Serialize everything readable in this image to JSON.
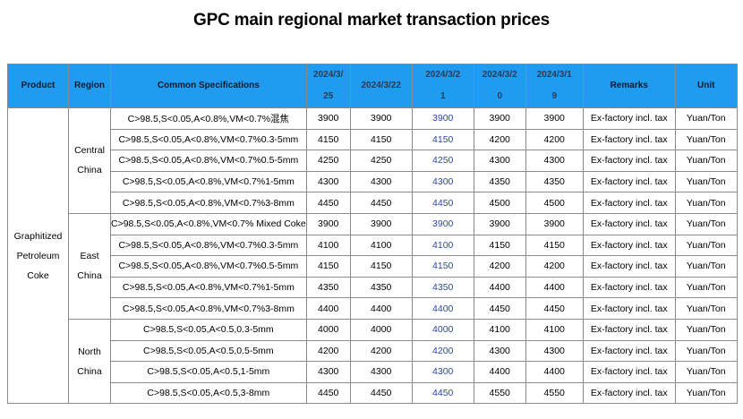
{
  "title": "GPC main regional market transaction prices",
  "headers": {
    "product": "Product",
    "region": "Region",
    "spec": "Common Specifications",
    "dates": [
      [
        "2024/3/",
        "25"
      ],
      [
        "2024/3/22"
      ],
      [
        "2024/3/2",
        "1"
      ],
      [
        "2024/3/2",
        "0"
      ],
      [
        "2024/3/1",
        "9"
      ]
    ],
    "remarks": "Remarks",
    "unit": "Unit"
  },
  "product": [
    "Graphitized",
    "Petroleum",
    "Coke"
  ],
  "regions": [
    {
      "name": [
        "Central",
        "China"
      ],
      "rows": [
        {
          "spec": "C>98.5,S<0.05,A<0.8%,VM<0.7%混焦",
          "p": [
            "3900",
            "3900",
            "3900",
            "3900",
            "3900"
          ],
          "remarks": "Ex-factory incl. tax",
          "unit": "Yuan/Ton"
        },
        {
          "spec": "C>98.5,S<0.05,A<0.8%,VM<0.7%0.3-5mm",
          "p": [
            "4150",
            "4150",
            "4150",
            "4200",
            "4200"
          ],
          "remarks": "Ex-factory incl. tax",
          "unit": "Yuan/Ton"
        },
        {
          "spec": "C>98.5,S<0.05,A<0.8%,VM<0.7%0.5-5mm",
          "p": [
            "4250",
            "4250",
            "4250",
            "4300",
            "4300"
          ],
          "remarks": "Ex-factory incl. tax",
          "unit": "Yuan/Ton"
        },
        {
          "spec": "C>98.5,S<0.05,A<0.8%,VM<0.7%1-5mm",
          "p": [
            "4300",
            "4300",
            "4300",
            "4350",
            "4350"
          ],
          "remarks": "Ex-factory incl. tax",
          "unit": "Yuan/Ton"
        },
        {
          "spec": "C>98.5,S<0.05,A<0.8%,VM<0.7%3-8mm",
          "p": [
            "4450",
            "4450",
            "4450",
            "4500",
            "4500"
          ],
          "remarks": "Ex-factory incl. tax",
          "unit": "Yuan/Ton"
        }
      ]
    },
    {
      "name": [
        "East",
        "China"
      ],
      "rows": [
        {
          "spec": "C>98.5,S<0.05,A<0.8%,VM<0.7% Mixed Coke",
          "p": [
            "3900",
            "3900",
            "3900",
            "3900",
            "3900"
          ],
          "remarks": "Ex-factory incl. tax",
          "unit": "Yuan/Ton"
        },
        {
          "spec": "C>98.5,S<0.05,A<0.8%,VM<0.7%0.3-5mm",
          "p": [
            "4100",
            "4100",
            "4100",
            "4150",
            "4150"
          ],
          "remarks": "Ex-factory incl. tax",
          "unit": "Yuan/Ton"
        },
        {
          "spec": "C>98.5,S<0.05,A<0.8%,VM<0.7%0.5-5mm",
          "p": [
            "4150",
            "4150",
            "4150",
            "4200",
            "4200"
          ],
          "remarks": "Ex-factory incl. tax",
          "unit": "Yuan/Ton"
        },
        {
          "spec": "C>98.5,S<0.05,A<0.8%,VM<0.7%1-5mm",
          "p": [
            "4350",
            "4350",
            "4350",
            "4400",
            "4400"
          ],
          "remarks": "Ex-factory incl. tax",
          "unit": "Yuan/Ton"
        },
        {
          "spec": "C>98.5,S<0.05,A<0.8%,VM<0.7%3-8mm",
          "p": [
            "4400",
            "4400",
            "4400",
            "4450",
            "4450"
          ],
          "remarks": "Ex-factory incl. tax",
          "unit": "Yuan/Ton"
        }
      ]
    },
    {
      "name": [
        "North",
        "China"
      ],
      "rows": [
        {
          "spec": "C>98.5,S<0.05,A<0.5,0.3-5mm",
          "p": [
            "4000",
            "4000",
            "4000",
            "4100",
            "4100"
          ],
          "remarks": "Ex-factory incl. tax",
          "unit": "Yuan/Ton"
        },
        {
          "spec": "C>98.5,S<0.05,A<0.5,0.5-5mm",
          "p": [
            "4200",
            "4200",
            "4200",
            "4300",
            "4300"
          ],
          "remarks": "Ex-factory incl. tax",
          "unit": "Yuan/Ton"
        },
        {
          "spec": "C>98.5,S<0.05,A<0.5,1-5mm",
          "p": [
            "4300",
            "4300",
            "4300",
            "4400",
            "4400"
          ],
          "remarks": "Ex-factory incl. tax",
          "unit": "Yuan/Ton"
        },
        {
          "spec": "C>98.5,S<0.05,A<0.5,3-8mm",
          "p": [
            "4450",
            "4450",
            "4450",
            "4550",
            "4550"
          ],
          "remarks": "Ex-factory incl. tax",
          "unit": "Yuan/Ton"
        }
      ]
    }
  ],
  "colors": {
    "header_bg": "#1f9cf0",
    "highlight_text": "#2b45a8",
    "border": "#8a8a8a"
  }
}
